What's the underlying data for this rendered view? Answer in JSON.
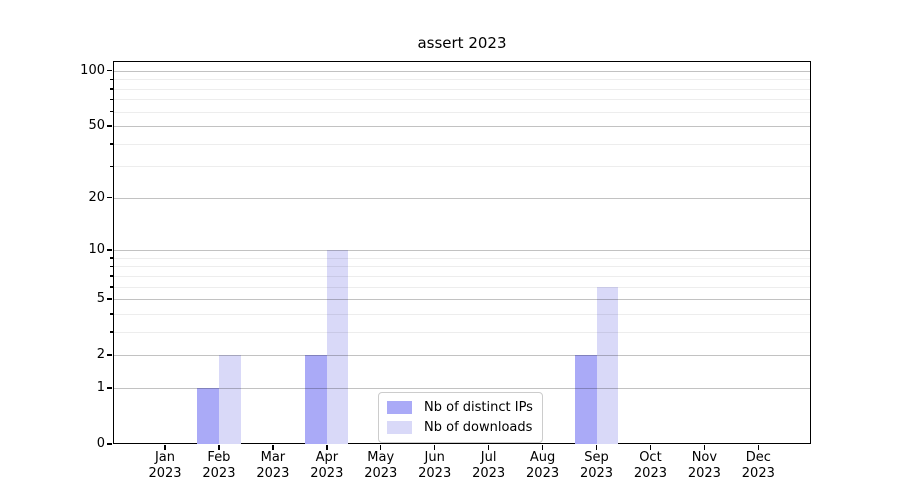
{
  "title": "assert 2023",
  "chart_data": {
    "type": "bar",
    "title": "assert 2023",
    "categories": [
      {
        "month": "Jan",
        "year": "2023"
      },
      {
        "month": "Feb",
        "year": "2023"
      },
      {
        "month": "Mar",
        "year": "2023"
      },
      {
        "month": "Apr",
        "year": "2023"
      },
      {
        "month": "May",
        "year": "2023"
      },
      {
        "month": "Jun",
        "year": "2023"
      },
      {
        "month": "Jul",
        "year": "2023"
      },
      {
        "month": "Aug",
        "year": "2023"
      },
      {
        "month": "Sep",
        "year": "2023"
      },
      {
        "month": "Oct",
        "year": "2023"
      },
      {
        "month": "Nov",
        "year": "2023"
      },
      {
        "month": "Dec",
        "year": "2023"
      }
    ],
    "series": [
      {
        "name": "Nb of distinct IPs",
        "color": "#aaaaf7",
        "values": [
          0,
          1,
          0,
          2,
          0,
          0,
          0,
          0,
          2,
          0,
          0,
          0
        ]
      },
      {
        "name": "Nb of downloads",
        "color": "#d9d9f8",
        "values": [
          0,
          2,
          0,
          10,
          0,
          0,
          0,
          0,
          6,
          0,
          0,
          0
        ]
      }
    ],
    "y_axis": {
      "scale": "log1p",
      "min": 0,
      "max": 113,
      "ticks": [
        0,
        1,
        2,
        5,
        10,
        20,
        50,
        100
      ],
      "minor_ticks": [
        3,
        4,
        6,
        7,
        8,
        9,
        30,
        40,
        60,
        70,
        80,
        90
      ]
    },
    "legend": {
      "position": "bottom-center"
    },
    "grid": "both",
    "grid_above_bars": true
  }
}
